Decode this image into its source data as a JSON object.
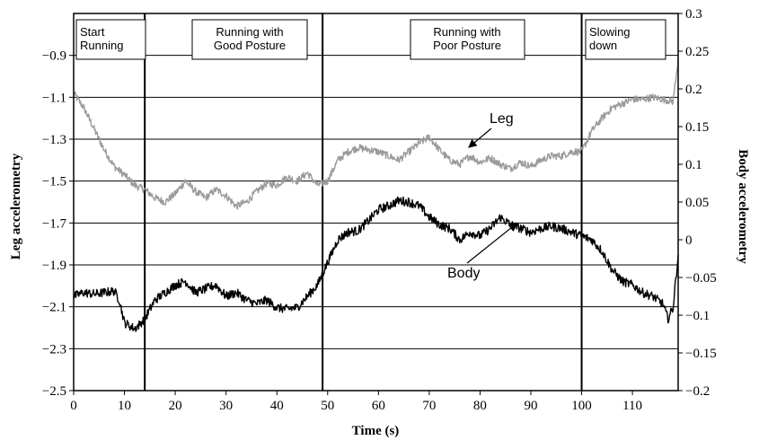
{
  "chart_data": {
    "type": "line",
    "title": "",
    "xlabel": "Time (s)",
    "ylabel_left": "Leg accelerometry",
    "ylabel_right": "Body accelerometry",
    "xlim": [
      0,
      119
    ],
    "ylim_left": [
      -2.5,
      -0.7
    ],
    "ylim_right": [
      -0.2,
      0.3
    ],
    "x_ticks": [
      "0",
      "10",
      "20",
      "30",
      "40",
      "50",
      "60",
      "70",
      "80",
      "90",
      "100",
      "110"
    ],
    "y_ticks_left": [
      "−2.5",
      "−2.3",
      "−2.1",
      "−1.9",
      "−1.7",
      "−1.5",
      "−1.3",
      "−1.1",
      "−0.9"
    ],
    "y_ticks_right": [
      "0.3",
      "0.25",
      "0.2",
      "0.15",
      "0.1",
      "0.05",
      "0",
      "−0.05",
      "−0.1",
      "−0.15",
      "−0.2"
    ],
    "grid": "horizontal",
    "phase_boundaries": [
      14,
      49,
      100
    ],
    "phases": [
      {
        "lines": [
          "Start",
          "Running"
        ]
      },
      {
        "lines": [
          "Running with",
          "Good Posture"
        ]
      },
      {
        "lines": [
          "Running with",
          "Poor Posture"
        ]
      },
      {
        "lines": [
          "Slowing",
          "down"
        ]
      }
    ],
    "series": [
      {
        "name": "Leg",
        "axis": "left",
        "color": "#9a9a9a",
        "x": [
          0,
          2,
          4,
          6,
          8,
          10,
          12,
          14,
          16,
          18,
          20,
          22,
          24,
          26,
          28,
          30,
          32,
          34,
          36,
          38,
          40,
          42,
          44,
          46,
          48,
          50,
          52,
          54,
          56,
          58,
          60,
          62,
          64,
          66,
          68,
          70,
          72,
          74,
          76,
          78,
          80,
          82,
          84,
          86,
          88,
          90,
          92,
          94,
          96,
          98,
          100,
          102,
          104,
          106,
          108,
          110,
          112,
          114,
          116,
          118,
          119
        ],
        "y": [
          -1.08,
          -1.15,
          -1.25,
          -1.35,
          -1.43,
          -1.47,
          -1.52,
          -1.54,
          -1.58,
          -1.6,
          -1.56,
          -1.5,
          -1.55,
          -1.58,
          -1.54,
          -1.57,
          -1.62,
          -1.6,
          -1.55,
          -1.51,
          -1.52,
          -1.48,
          -1.5,
          -1.46,
          -1.52,
          -1.5,
          -1.4,
          -1.36,
          -1.34,
          -1.35,
          -1.36,
          -1.38,
          -1.4,
          -1.36,
          -1.32,
          -1.29,
          -1.35,
          -1.4,
          -1.42,
          -1.38,
          -1.41,
          -1.39,
          -1.42,
          -1.44,
          -1.41,
          -1.43,
          -1.4,
          -1.38,
          -1.38,
          -1.36,
          -1.36,
          -1.26,
          -1.2,
          -1.15,
          -1.13,
          -1.11,
          -1.11,
          -1.1,
          -1.11,
          -1.12,
          -0.92
        ]
      },
      {
        "name": "Body",
        "axis": "right",
        "color": "#000000",
        "x": [
          0,
          2,
          4,
          6,
          8,
          9,
          10,
          12,
          13,
          14,
          16,
          18,
          20,
          22,
          24,
          26,
          28,
          30,
          32,
          34,
          36,
          38,
          40,
          42,
          44,
          46,
          48,
          50,
          52,
          54,
          56,
          58,
          60,
          62,
          64,
          66,
          68,
          70,
          72,
          74,
          76,
          78,
          80,
          82,
          84,
          86,
          88,
          90,
          92,
          94,
          96,
          98,
          100,
          102,
          104,
          106,
          108,
          110,
          112,
          114,
          116,
          117,
          118,
          119
        ],
        "y": [
          -0.075,
          -0.07,
          -0.072,
          -0.07,
          -0.068,
          -0.08,
          -0.11,
          -0.118,
          -0.112,
          -0.105,
          -0.08,
          -0.07,
          -0.06,
          -0.055,
          -0.07,
          -0.065,
          -0.06,
          -0.075,
          -0.07,
          -0.08,
          -0.085,
          -0.08,
          -0.09,
          -0.092,
          -0.09,
          -0.075,
          -0.06,
          -0.03,
          0.0,
          0.01,
          0.012,
          0.025,
          0.04,
          0.045,
          0.052,
          0.05,
          0.045,
          0.03,
          0.02,
          0.015,
          0.0,
          0.01,
          0.005,
          0.015,
          0.03,
          0.02,
          0.015,
          0.01,
          0.015,
          0.018,
          0.015,
          0.01,
          0.005,
          0.0,
          -0.015,
          -0.04,
          -0.055,
          -0.06,
          -0.07,
          -0.075,
          -0.085,
          -0.105,
          -0.09,
          -0.02
        ]
      }
    ],
    "annotations": [
      {
        "text": "Leg",
        "series": "Leg"
      },
      {
        "text": "Body",
        "series": "Body"
      }
    ]
  }
}
